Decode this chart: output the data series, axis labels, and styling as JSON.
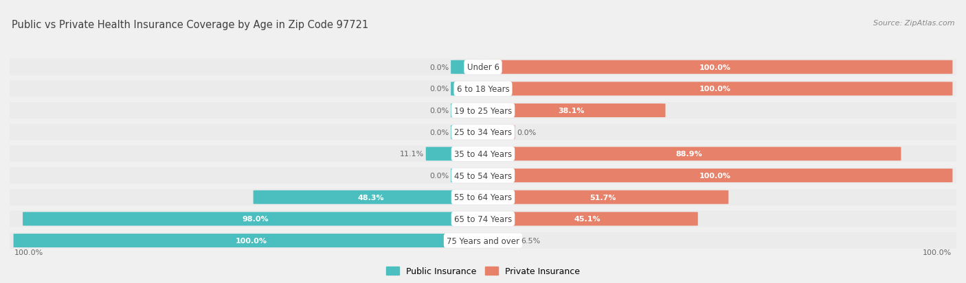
{
  "title": "Public vs Private Health Insurance Coverage by Age in Zip Code 97721",
  "source": "Source: ZipAtlas.com",
  "categories": [
    "Under 6",
    "6 to 18 Years",
    "19 to 25 Years",
    "25 to 34 Years",
    "35 to 44 Years",
    "45 to 54 Years",
    "55 to 64 Years",
    "65 to 74 Years",
    "75 Years and over"
  ],
  "public_values": [
    0.0,
    0.0,
    0.0,
    0.0,
    11.1,
    0.0,
    48.3,
    98.0,
    100.0
  ],
  "private_values": [
    100.0,
    100.0,
    38.1,
    0.0,
    88.9,
    100.0,
    51.7,
    45.1,
    6.5
  ],
  "public_color": "#4bbfbf",
  "private_color": "#e8816a",
  "private_color_light": "#f0a898",
  "bg_color": "#f0f0f0",
  "bar_bg_color": "#e8e8e8",
  "row_bg_color": "#ebebeb",
  "title_color": "#404040",
  "source_color": "#888888",
  "label_white": "#ffffff",
  "label_dark": "#666666",
  "pill_color": "#ffffff",
  "pill_text_color": "#444444",
  "axis_label_left": "100.0%",
  "axis_label_right": "100.0%",
  "legend_public": "Public Insurance",
  "legend_private": "Private Insurance",
  "title_fontsize": 10.5,
  "source_fontsize": 8,
  "bar_label_fontsize": 8,
  "category_fontsize": 8.5,
  "legend_fontsize": 9,
  "axis_label_fontsize": 8
}
